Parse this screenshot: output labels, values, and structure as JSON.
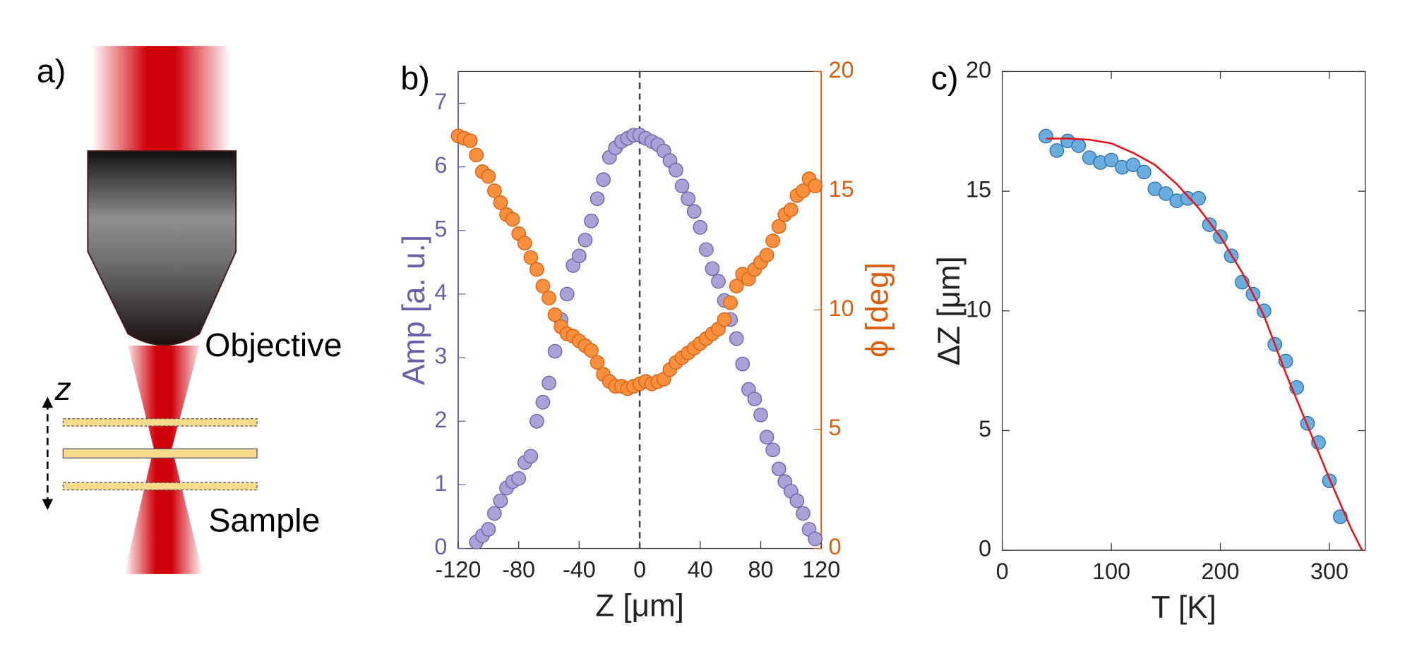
{
  "diagram": {
    "label": "a)",
    "objective": "Objective",
    "sample": "Sample",
    "axis": "z"
  },
  "chart_data": [
    {
      "type": "scatter",
      "label": "b)",
      "xlabel": "Z [μm]",
      "ylabel": "Amp [a. u.]",
      "y2label": "ϕ [deg]",
      "xlim": [
        -120,
        120
      ],
      "xticks": [
        -120,
        -80,
        -40,
        0,
        40,
        80,
        120
      ],
      "ylim": [
        0,
        7.5
      ],
      "yticks": [
        0,
        1,
        2,
        3,
        4,
        5,
        6,
        7
      ],
      "y2lim": [
        0,
        20
      ],
      "y2ticks": [
        0,
        5,
        10,
        15,
        20
      ],
      "ycolor": "#6c5fa7",
      "y2color": "#d95f0e",
      "vline": 0,
      "x": [
        -120,
        -116,
        -112,
        -108,
        -104,
        -100,
        -96,
        -92,
        -88,
        -84,
        -80,
        -76,
        -72,
        -68,
        -64,
        -60,
        -56,
        -52,
        -48,
        -44,
        -40,
        -36,
        -32,
        -28,
        -24,
        -20,
        -16,
        -12,
        -8,
        -4,
        0,
        4,
        8,
        12,
        16,
        20,
        24,
        28,
        32,
        36,
        40,
        44,
        48,
        52,
        56,
        60,
        64,
        68,
        72,
        76,
        80,
        84,
        88,
        92,
        96,
        100,
        104,
        108,
        112,
        116
      ],
      "series": [
        {
          "color": "#aaa2d6",
          "edge": "#6a5fa8",
          "axis": "y",
          "values": [
            null,
            null,
            null,
            0.1,
            0.2,
            0.3,
            0.55,
            0.75,
            0.95,
            1.05,
            1.1,
            1.35,
            1.45,
            2.0,
            2.3,
            2.6,
            3.1,
            3.6,
            4.0,
            4.45,
            4.6,
            4.85,
            5.15,
            5.5,
            5.8,
            6.15,
            6.3,
            6.4,
            6.45,
            6.5,
            6.5,
            6.45,
            6.4,
            6.35,
            6.25,
            6.1,
            5.95,
            5.7,
            5.5,
            5.3,
            5.05,
            4.7,
            4.4,
            4.2,
            3.9,
            3.6,
            3.3,
            2.9,
            2.5,
            2.35,
            2.1,
            1.75,
            1.55,
            1.25,
            1.05,
            0.9,
            0.75,
            0.55,
            0.3,
            0.15
          ]
        },
        {
          "color": "#fa8f3e",
          "edge": "#d45f10",
          "axis": "y2",
          "values": [
            17.3,
            17.2,
            17.1,
            16.5,
            15.8,
            15.6,
            15.0,
            14.5,
            14.0,
            13.8,
            13.2,
            12.8,
            12.2,
            11.7,
            11.0,
            10.5,
            9.8,
            9.3,
            9.0,
            8.9,
            8.7,
            8.5,
            8.3,
            7.8,
            7.3,
            7.0,
            6.8,
            6.8,
            6.7,
            6.8,
            6.9,
            7.0,
            6.9,
            7.0,
            7.1,
            7.5,
            7.8,
            8.0,
            8.2,
            8.4,
            8.6,
            8.8,
            9.0,
            9.2,
            9.6,
            10.3,
            11.0,
            11.5,
            11.3,
            11.7,
            12.0,
            12.3,
            12.9,
            13.5,
            14.0,
            14.2,
            14.8,
            15.0,
            15.5,
            15.2
          ]
        }
      ]
    },
    {
      "type": "scatter",
      "label": "c)",
      "xlabel": "T [K]",
      "ylabel": "ΔZ [μm]",
      "xlim": [
        0,
        333
      ],
      "xticks": [
        0,
        100,
        200,
        300
      ],
      "ylim": [
        0,
        20
      ],
      "yticks": [
        0,
        5,
        10,
        15,
        20
      ],
      "mirror_ticks": true,
      "series": [
        {
          "color": "#6aaee0",
          "edge": "#2f6fa6",
          "axis": "y",
          "x": [
            40,
            50,
            60,
            70,
            80,
            90,
            100,
            110,
            120,
            130,
            140,
            150,
            160,
            170,
            180,
            190,
            200,
            210,
            220,
            230,
            240,
            250,
            260,
            270,
            280,
            290,
            300,
            310
          ],
          "values": [
            17.3,
            16.7,
            17.1,
            16.9,
            16.4,
            16.2,
            16.3,
            16.0,
            16.1,
            15.8,
            15.1,
            14.9,
            14.6,
            14.7,
            14.7,
            13.6,
            13.1,
            12.3,
            11.2,
            10.7,
            10.0,
            8.6,
            7.9,
            6.8,
            5.3,
            4.5,
            2.9,
            1.4
          ]
        },
        {
          "type": "line",
          "color": "#e8141c",
          "axis": "y",
          "x": [
            40,
            60,
            80,
            100,
            120,
            140,
            160,
            180,
            200,
            220,
            240,
            260,
            280,
            300,
            320,
            330
          ],
          "values": [
            17.2,
            17.2,
            17.15,
            17.0,
            16.6,
            16.1,
            15.3,
            14.3,
            13.1,
            11.6,
            9.8,
            7.4,
            5.2,
            3.0,
            0.9,
            0
          ]
        }
      ]
    }
  ]
}
